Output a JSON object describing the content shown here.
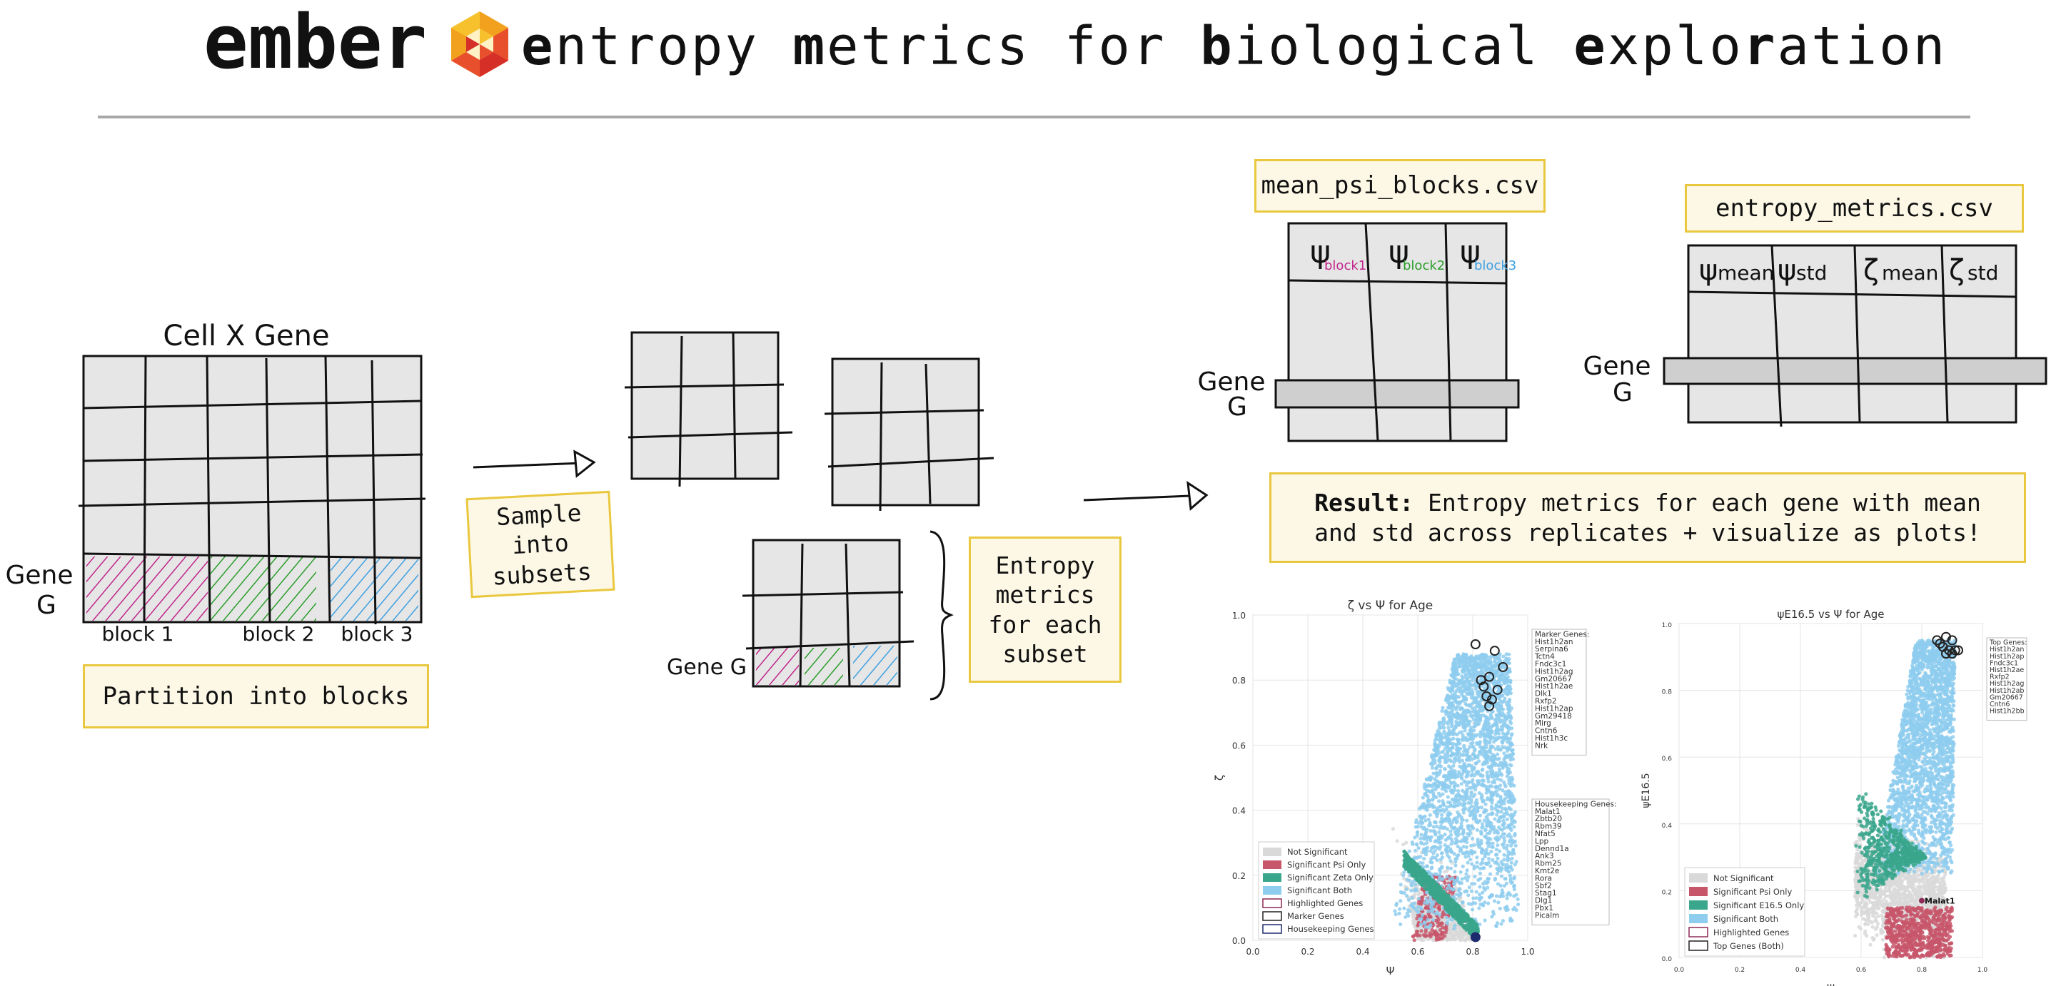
{
  "header": {
    "brand": "ember",
    "logo_icon": "hexagon-flower-logo",
    "tagline_words": [
      {
        "bold": "e",
        "rest": "ntropy"
      },
      {
        "bold": "m",
        "rest": "etrics"
      },
      {
        "bold": "",
        "rest": "for"
      },
      {
        "bold": "b",
        "rest": "iological"
      },
      {
        "bold": "e",
        "rest": "xplo",
        "bold2": "r",
        "rest2": "ation"
      }
    ]
  },
  "matrix": {
    "title": "Cell X Gene",
    "gene_label_1": "Gene",
    "gene_label_2": "G",
    "blocks": [
      "block 1",
      "block 2",
      "block 3"
    ],
    "block_colors": [
      "#c0258a",
      "#2a9d2a",
      "#3e9fe0"
    ]
  },
  "steps": {
    "partition": "Partition into blocks",
    "sample": "Sample into subsets",
    "entropy": "Entropy metrics for each subset"
  },
  "subset_gene_label": "Gene G",
  "files": {
    "mean_psi": "mean_psi_blocks.csv",
    "entropy": "entropy_metrics.csv"
  },
  "mean_psi_table": {
    "columns": [
      {
        "symbol": "ψ",
        "sub": "block1",
        "color": "#c0258a"
      },
      {
        "symbol": "ψ",
        "sub": "block2",
        "color": "#2a9d2a"
      },
      {
        "symbol": "ψ",
        "sub": "block3",
        "color": "#3e9fe0"
      }
    ],
    "gene_label_1": "Gene",
    "gene_label_2": "G"
  },
  "entropy_table": {
    "columns": [
      {
        "symbol": "ψ",
        "sub": "mean"
      },
      {
        "symbol": "ψ",
        "sub": "std"
      },
      {
        "symbol": "ζ",
        "sub": "mean"
      },
      {
        "symbol": "ζ",
        "sub": "std"
      }
    ],
    "gene_label_1": "Gene",
    "gene_label_2": "G"
  },
  "result": {
    "bold": "Result:",
    "text": "Entropy  metrics  for each gene with mean and std across replicates + visualize as plots!"
  },
  "chart_data": [
    {
      "type": "scatter",
      "title": "ζ vs Ψ for Age",
      "xlabel": "Ψ",
      "ylabel": "ζ",
      "xlim": [
        0.0,
        1.0
      ],
      "ylim": [
        0.0,
        1.0
      ],
      "xticks": [
        "0.0",
        "0.2",
        "0.4",
        "0.6",
        "0.8",
        "1.0"
      ],
      "yticks": [
        "0.0",
        "0.2",
        "0.4",
        "0.6",
        "0.8",
        "1.0"
      ],
      "grid": true,
      "legend_position": "lower-left",
      "legend": [
        {
          "label": "Not Significant",
          "color": "#d9d9d9",
          "style": "fill"
        },
        {
          "label": "Significant Psi Only",
          "color": "#c8566b",
          "style": "fill"
        },
        {
          "label": "Significant Zeta Only",
          "color": "#3aa68c",
          "style": "fill"
        },
        {
          "label": "Significant Both",
          "color": "#8ecdee",
          "style": "fill"
        },
        {
          "label": "Highlighted Genes",
          "color": "#8e2a55",
          "style": "outline"
        },
        {
          "label": "Marker Genes",
          "color": "#222222",
          "style": "outline"
        },
        {
          "label": "Housekeeping Genes",
          "color": "#1e2a6e",
          "style": "outline"
        }
      ],
      "marker_box_title": "Marker Genes:",
      "marker_genes": [
        "Hist1h2an",
        "Serpina6",
        "Tctn4",
        "Fndc3c1",
        "Hist1h2ag",
        "Gm20667",
        "Hist1h2ae",
        "Dlk1",
        "Rxfp2",
        "Hist1h2ap",
        "Gm29418",
        "Mirg",
        "Cntn6",
        "Hist1h3c",
        "Nrk"
      ],
      "housekeeping_box_title": "Housekeeping Genes:",
      "housekeeping_genes": [
        "Malat1",
        "Zbtb20",
        "Rbm39",
        "Nfat5",
        "Lpp",
        "Dennd1a",
        "Ank3",
        "Rbm25",
        "Kmt2e",
        "Rora",
        "Sbf2",
        "Stag1",
        "Dlg1",
        "Pbx1",
        "Picalm"
      ],
      "marker_points": [
        {
          "x": 0.81,
          "y": 0.91
        },
        {
          "x": 0.88,
          "y": 0.89
        },
        {
          "x": 0.91,
          "y": 0.84
        },
        {
          "x": 0.83,
          "y": 0.8
        },
        {
          "x": 0.86,
          "y": 0.81
        },
        {
          "x": 0.84,
          "y": 0.78
        },
        {
          "x": 0.89,
          "y": 0.77
        },
        {
          "x": 0.85,
          "y": 0.75
        },
        {
          "x": 0.87,
          "y": 0.74
        },
        {
          "x": 0.86,
          "y": 0.72
        }
      ],
      "housekeeping_points": [
        {
          "x": 0.81,
          "y": 0.01
        }
      ]
    },
    {
      "type": "scatter",
      "title": "ψE16.5 vs Ψ for Age",
      "xlabel": "Ψ",
      "ylabel": "ψE16.5",
      "xlim": [
        0.0,
        1.0
      ],
      "ylim": [
        0.0,
        1.0
      ],
      "xticks": [
        "0.0",
        "0.2",
        "0.4",
        "0.6",
        "0.8",
        "1.0"
      ],
      "yticks": [
        "0.0",
        "0.2",
        "0.4",
        "0.6",
        "0.8",
        "1.0"
      ],
      "grid": true,
      "legend_position": "lower-left",
      "legend": [
        {
          "label": "Not Significant",
          "color": "#d9d9d9",
          "style": "fill"
        },
        {
          "label": "Significant Psi Only",
          "color": "#c8566b",
          "style": "fill"
        },
        {
          "label": "Significant E16.5 Only",
          "color": "#3aa68c",
          "style": "fill"
        },
        {
          "label": "Significant Both",
          "color": "#8ecdee",
          "style": "fill"
        },
        {
          "label": "Highlighted Genes",
          "color": "#8e2a55",
          "style": "outline"
        },
        {
          "label": "Top Genes (Both)",
          "color": "#222222",
          "style": "outline"
        }
      ],
      "top_box_title": "Top Genes:",
      "top_genes": [
        "Hist1h2an",
        "Hist1h2ap",
        "Fndc3c1",
        "Hist1h2ae",
        "Rxfp2",
        "Hist1h2ag",
        "Hist1h2ab",
        "Gm20667",
        "Cntn6",
        "Hist1h2bb"
      ],
      "annotation": "Malat1",
      "top_points": [
        {
          "x": 0.88,
          "y": 0.96
        },
        {
          "x": 0.9,
          "y": 0.95
        },
        {
          "x": 0.86,
          "y": 0.94
        },
        {
          "x": 0.87,
          "y": 0.93
        },
        {
          "x": 0.89,
          "y": 0.92
        },
        {
          "x": 0.91,
          "y": 0.92
        },
        {
          "x": 0.88,
          "y": 0.91
        },
        {
          "x": 0.9,
          "y": 0.91
        },
        {
          "x": 0.92,
          "y": 0.92
        },
        {
          "x": 0.85,
          "y": 0.95
        }
      ],
      "highlight_point": {
        "x": 0.8,
        "y": 0.17
      }
    }
  ]
}
